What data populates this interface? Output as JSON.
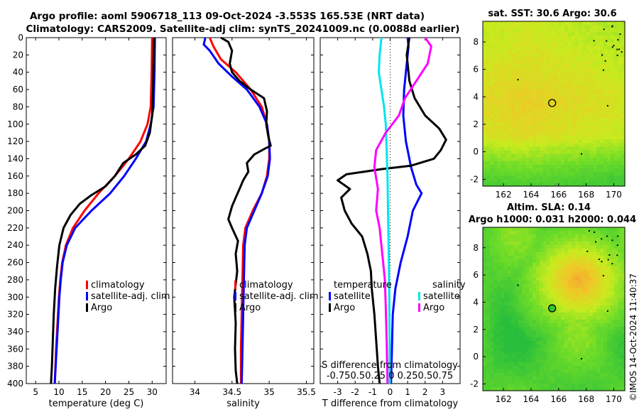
{
  "header": {
    "line1": "Argo profile: aoml 5906718_113 09-Oct-2024 -3.553S 165.53E (NRT data)",
    "line2": "Climatology: CARS2009. Satellite-adj clim: synTS_20241009.nc (0.0088d earlier)"
  },
  "watermark": "©IMOS 14-Oct-2024 11:40:37",
  "colors": {
    "climatology": "#ff0000",
    "satellite": "#0000ff",
    "argo": "#000000",
    "cyan": "#00e5ee",
    "magenta": "#ff00ff"
  },
  "chart_data": [
    {
      "id": "temp",
      "type": "line",
      "xlabel": "temperature (deg C)",
      "ylabel": "",
      "xlim": [
        3,
        33
      ],
      "ylim": [
        400,
        0
      ],
      "xticks": [
        5,
        10,
        15,
        20,
        25,
        30
      ],
      "xtick_labels": [
        "5",
        "10",
        "15",
        "20",
        "25",
        "30"
      ],
      "yticks": [
        0,
        20,
        40,
        60,
        80,
        100,
        120,
        140,
        160,
        180,
        200,
        220,
        240,
        260,
        280,
        300,
        320,
        340,
        360,
        380,
        400
      ],
      "legend": [
        "climatology",
        "satellite-adj. clim",
        "Argo"
      ],
      "series": [
        {
          "name": "climatology",
          "color": "#ff0000",
          "points": [
            [
              30,
              0
            ],
            [
              29.9,
              40
            ],
            [
              29.7,
              80
            ],
            [
              29,
              100
            ],
            [
              27.5,
              120
            ],
            [
              25,
              140
            ],
            [
              22,
              160
            ],
            [
              18.5,
              180
            ],
            [
              15.5,
              200
            ],
            [
              13,
              220
            ],
            [
              11.5,
              240
            ],
            [
              10.7,
              260
            ],
            [
              10.3,
              280
            ],
            [
              10,
              300
            ],
            [
              9.7,
              330
            ],
            [
              9.4,
              360
            ],
            [
              9.1,
              400
            ]
          ]
        },
        {
          "name": "satellite-adj. clim",
          "color": "#0000ff",
          "points": [
            [
              30.6,
              0
            ],
            [
              30.5,
              40
            ],
            [
              30.3,
              80
            ],
            [
              29.7,
              100
            ],
            [
              28.7,
              120
            ],
            [
              26.5,
              140
            ],
            [
              24,
              160
            ],
            [
              21,
              180
            ],
            [
              17,
              200
            ],
            [
              13.5,
              220
            ],
            [
              11.7,
              240
            ],
            [
              10.8,
              260
            ],
            [
              10.4,
              280
            ],
            [
              10.1,
              300
            ],
            [
              9.8,
              330
            ],
            [
              9.5,
              360
            ],
            [
              9.1,
              400
            ]
          ]
        },
        {
          "name": "Argo",
          "color": "#000000",
          "points": [
            [
              30.4,
              0
            ],
            [
              30.3,
              30
            ],
            [
              30.2,
              60
            ],
            [
              30,
              90
            ],
            [
              29.5,
              110
            ],
            [
              28.5,
              125
            ],
            [
              26.5,
              135
            ],
            [
              23.8,
              145
            ],
            [
              22,
              160
            ],
            [
              20,
              172
            ],
            [
              17,
              182
            ],
            [
              14.5,
              192
            ],
            [
              12.5,
              205
            ],
            [
              11,
              220
            ],
            [
              10.1,
              240
            ],
            [
              9.6,
              265
            ],
            [
              9.2,
              290
            ],
            [
              8.9,
              320
            ],
            [
              8.7,
              350
            ],
            [
              8.5,
              380
            ],
            [
              8.3,
              400
            ]
          ]
        }
      ]
    },
    {
      "id": "salt",
      "type": "line",
      "xlabel": "salinity",
      "xlim": [
        33.7,
        35.6
      ],
      "ylim": [
        400,
        0
      ],
      "xticks": [
        34,
        34.5,
        35,
        35.5
      ],
      "xtick_labels": [
        "34",
        "34.5",
        "35",
        "35.5"
      ],
      "legend": [
        "climatology",
        "satellite-adj. clim",
        "Argo"
      ],
      "series": [
        {
          "name": "climatology",
          "color": "#ff0000",
          "points": [
            [
              34.2,
              0
            ],
            [
              34.25,
              10
            ],
            [
              34.35,
              25
            ],
            [
              34.55,
              40
            ],
            [
              34.75,
              60
            ],
            [
              34.9,
              80
            ],
            [
              34.97,
              100
            ],
            [
              35.0,
              120
            ],
            [
              35.0,
              140
            ],
            [
              34.97,
              160
            ],
            [
              34.9,
              180
            ],
            [
              34.78,
              200
            ],
            [
              34.68,
              220
            ],
            [
              34.65,
              240
            ],
            [
              34.64,
              280
            ],
            [
              34.63,
              320
            ],
            [
              34.62,
              360
            ],
            [
              34.62,
              400
            ]
          ]
        },
        {
          "name": "satellite-adj. clim",
          "color": "#0000ff",
          "points": [
            [
              34.14,
              0
            ],
            [
              34.12,
              8
            ],
            [
              34.2,
              15
            ],
            [
              34.32,
              30
            ],
            [
              34.5,
              45
            ],
            [
              34.7,
              60
            ],
            [
              34.87,
              80
            ],
            [
              34.97,
              100
            ],
            [
              35.0,
              120
            ],
            [
              35.01,
              140
            ],
            [
              34.98,
              160
            ],
            [
              34.9,
              180
            ],
            [
              34.8,
              200
            ],
            [
              34.7,
              220
            ],
            [
              34.67,
              240
            ],
            [
              34.66,
              280
            ],
            [
              34.65,
              320
            ],
            [
              34.64,
              360
            ],
            [
              34.63,
              400
            ]
          ]
        },
        {
          "name": "Argo",
          "color": "#000000",
          "points": [
            [
              34.35,
              0
            ],
            [
              34.45,
              5
            ],
            [
              34.5,
              15
            ],
            [
              34.47,
              30
            ],
            [
              34.5,
              40
            ],
            [
              34.6,
              50
            ],
            [
              34.75,
              60
            ],
            [
              34.93,
              70
            ],
            [
              34.97,
              85
            ],
            [
              34.96,
              100
            ],
            [
              34.99,
              115
            ],
            [
              35.02,
              125
            ],
            [
              34.95,
              128
            ],
            [
              34.8,
              135
            ],
            [
              34.7,
              145
            ],
            [
              34.72,
              155
            ],
            [
              34.65,
              165
            ],
            [
              34.6,
              175
            ],
            [
              34.55,
              185
            ],
            [
              34.5,
              195
            ],
            [
              34.45,
              210
            ],
            [
              34.5,
              220
            ],
            [
              34.58,
              235
            ],
            [
              34.55,
              250
            ],
            [
              34.57,
              270
            ],
            [
              34.53,
              300
            ],
            [
              34.55,
              330
            ],
            [
              34.54,
              360
            ],
            [
              34.55,
              385
            ],
            [
              34.57,
              400
            ]
          ]
        }
      ]
    },
    {
      "id": "diff",
      "type": "line",
      "xlabel": "T difference from climatology",
      "top_label": "S difference from climatology",
      "xlim": [
        -4.0,
        4.0
      ],
      "ylim": [
        400,
        0
      ],
      "xticks": [
        -3,
        -2,
        -1,
        0,
        1,
        2,
        3
      ],
      "xtick_labels": [
        "-3",
        "-2",
        "-1",
        "0",
        "1",
        "2",
        "3"
      ],
      "s_ticks": [
        -0.75,
        -0.5,
        -0.25,
        0,
        0.25,
        0.5,
        0.75
      ],
      "s_tick_text": "-0.750.50.25 0  0.250.50.75",
      "legend_temperature_title": "temperature",
      "legend_salinity_title": "salinity",
      "legend": [
        "satellite",
        "Argo",
        "satellite",
        "Argo"
      ],
      "series": [
        {
          "name": "T satellite",
          "color": "#0000ff",
          "points": [
            [
              1.0,
              0
            ],
            [
              1.05,
              10
            ],
            [
              0.95,
              30
            ],
            [
              0.8,
              60
            ],
            [
              0.75,
              90
            ],
            [
              0.9,
              120
            ],
            [
              1.2,
              150
            ],
            [
              1.5,
              170
            ],
            [
              1.8,
              180
            ],
            [
              1.3,
              200
            ],
            [
              1.0,
              230
            ],
            [
              0.6,
              260
            ],
            [
              0.3,
              290
            ],
            [
              0.15,
              320
            ],
            [
              0.1,
              360
            ],
            [
              0.05,
              400
            ]
          ]
        },
        {
          "name": "T Argo",
          "color": "#000000",
          "points": [
            [
              1.1,
              0
            ],
            [
              0.95,
              20
            ],
            [
              1.1,
              50
            ],
            [
              1.4,
              70
            ],
            [
              2.0,
              90
            ],
            [
              2.8,
              105
            ],
            [
              3.2,
              118
            ],
            [
              2.9,
              130
            ],
            [
              2.5,
              140
            ],
            [
              1.2,
              148
            ],
            [
              -0.5,
              152
            ],
            [
              -2.5,
              158
            ],
            [
              -3.0,
              165
            ],
            [
              -2.3,
              175
            ],
            [
              -2.8,
              185
            ],
            [
              -2.6,
              200
            ],
            [
              -2.2,
              215
            ],
            [
              -1.6,
              230
            ],
            [
              -1.3,
              250
            ],
            [
              -1.1,
              270
            ],
            [
              -1.05,
              290
            ],
            [
              -0.9,
              320
            ],
            [
              -0.8,
              350
            ],
            [
              -0.7,
              380
            ],
            [
              -0.6,
              400
            ]
          ]
        },
        {
          "name": "S satellite",
          "color": "#00e5ee",
          "points": [
            [
              -0.5,
              0
            ],
            [
              -0.6,
              20
            ],
            [
              -0.65,
              40
            ],
            [
              -0.5,
              60
            ],
            [
              -0.35,
              80
            ],
            [
              -0.25,
              100
            ],
            [
              -0.2,
              130
            ],
            [
              -0.15,
              160
            ],
            [
              -0.12,
              200
            ],
            [
              -0.08,
              250
            ],
            [
              -0.05,
              300
            ],
            [
              -0.03,
              350
            ],
            [
              -0.02,
              400
            ]
          ]
        },
        {
          "name": "S Argo",
          "color": "#ff00ff",
          "points": [
            [
              2.0,
              0
            ],
            [
              2.35,
              10
            ],
            [
              2.15,
              30
            ],
            [
              1.5,
              50
            ],
            [
              0.85,
              70
            ],
            [
              0.5,
              90
            ],
            [
              -0.25,
              110
            ],
            [
              -0.8,
              130
            ],
            [
              -0.9,
              150
            ],
            [
              -0.7,
              175
            ],
            [
              -0.8,
              200
            ],
            [
              -0.6,
              220
            ],
            [
              -0.45,
              250
            ],
            [
              -0.3,
              280
            ],
            [
              -0.25,
              310
            ],
            [
              -0.2,
              350
            ],
            [
              -0.15,
              400
            ]
          ]
        }
      ]
    },
    {
      "id": "sst_map",
      "type": "heatmap",
      "title": "sat. SST: 30.6 Argo: 30.6",
      "xlim": [
        160.5,
        170.8
      ],
      "ylim": [
        -2.5,
        9.5
      ],
      "xticks": [
        162,
        164,
        166,
        168,
        170
      ],
      "yticks": [
        -2,
        0,
        2,
        4,
        6,
        8
      ],
      "marker": [
        165.53,
        3.55
      ],
      "marker_fill": "none"
    },
    {
      "id": "sla_map",
      "type": "heatmap",
      "title": "Altim. SLA: 0.14",
      "subtitle": "Argo h1000: 0.031 h2000: 0.044",
      "xlim": [
        160.5,
        170.8
      ],
      "ylim": [
        -2.5,
        9.5
      ],
      "xticks": [
        162,
        164,
        166,
        168,
        170
      ],
      "yticks": [
        -2,
        0,
        2,
        4,
        6,
        8
      ],
      "marker": [
        165.53,
        3.55
      ],
      "marker_fill": "#2ec82e"
    }
  ]
}
